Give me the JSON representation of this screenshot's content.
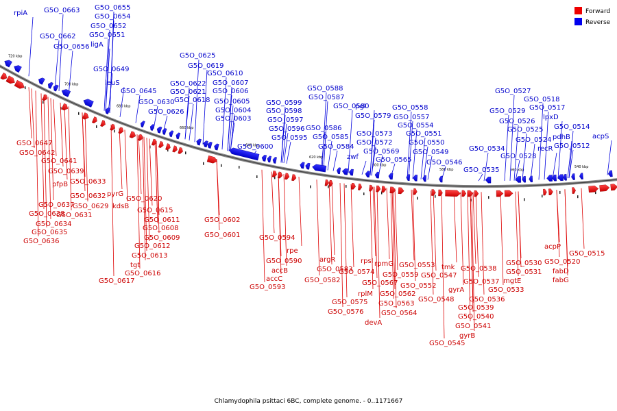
{
  "caption": "Chlamydophila psittaci 6BC, complete genome. - 0..1171667",
  "legend": [
    {
      "label": "Forward",
      "color": "#ee0000"
    },
    {
      "label": "Reverse",
      "color": "#0000ee"
    }
  ],
  "kbp_marks": [
    "720 kbp",
    "700 kbp",
    "680 kbp",
    "660 kbp",
    "640 kbp",
    "620 kbp",
    "600 kbp",
    "580 kbp",
    "560 kbp",
    "540 kbp"
  ],
  "forward_labels": [
    "G5O_0647",
    "G5O_0642",
    "G5O_0641",
    "G5O_0639",
    "pfpB",
    "G5O_0633",
    "G5O_0632",
    "G5O_0637",
    "G5O_0629",
    "pyrG",
    "kdsB",
    "G5O_0638",
    "G5O_0631",
    "G5O_0634",
    "G5O_0635",
    "G5O_0636",
    "G5O_0620",
    "G5O_0615",
    "G5O_0611",
    "G5O_0608",
    "G5O_0609",
    "G5O_0612",
    "G5O_0613",
    "tgt",
    "G5O_0616",
    "G5O_0617",
    "G5O_0602",
    "G5O_0601",
    "G5O_0594",
    "rpe",
    "G5O_0590",
    "accB",
    "accC",
    "G5O_0593",
    "argR",
    "G5O_0583",
    "G5O_0582",
    "G5O_0574",
    "rpsI",
    "rplM",
    "G5O_0575",
    "G5O_0576",
    "rpmG",
    "G5O_0567",
    "G5O_0562",
    "G5O_0563",
    "G5O_0564",
    "devA",
    "G5O_0553",
    "G5O_0559",
    "G5O_0552",
    "G5O_0548",
    "tmk",
    "G5O_0547",
    "gyrA",
    "G5O_0545",
    "G5O_0538",
    "G5O_0537",
    "G5O_0536",
    "G5O_0539",
    "G5O_0540",
    "G5O_0541",
    "gyrB",
    "G5O_0530",
    "G5O_0531",
    "mgtE",
    "G5O_0533",
    "acpP",
    "G5O_0520",
    "fabD",
    "fabG",
    "G5O_0515"
  ],
  "reverse_labels": [
    "rpiA",
    "G5O_0663",
    "G5O_0655",
    "G5O_0654",
    "G5O_0652",
    "G5O_0651",
    "G5O_0662",
    "ligA",
    "G5O_0656",
    "G5O_0649",
    "leuS",
    "G5O_0645",
    "G5O_0625",
    "G5O_0619",
    "G5O_0610",
    "G5O_0622",
    "G5O_0607",
    "G5O_0621",
    "G5O_0606",
    "G5O_0630",
    "G5O_0618",
    "G5O_0605",
    "G5O_0626",
    "G5O_0604",
    "G5O_0603",
    "G5O_0588",
    "G5O_0587",
    "G5O_0599",
    "G5O_0598",
    "G5O_0580",
    "pgl",
    "G5O_0597",
    "G5O_0579",
    "G5O_0596",
    "G5O_0586",
    "G5O_0573",
    "G5O_0595",
    "G5O_0585",
    "G5O_0572",
    "G5O_0600",
    "G5O_0584",
    "G5O_0569",
    "zwf",
    "G5O_0565",
    "G5O_0558",
    "G5O_0557",
    "G5O_0554",
    "G5O_0551",
    "G5O_0550",
    "G5O_0549",
    "G5O_0546",
    "G5O_0534",
    "G5O_0535",
    "G5O_0527",
    "G5O_0518",
    "G5O_0529",
    "G5O_0517",
    "G5O_0526",
    "lpxD",
    "G5O_0525",
    "G5O_0514",
    "G5O_0524",
    "pdhB",
    "recR",
    "G5O_0528",
    "G5O_0512",
    "acpS"
  ]
}
